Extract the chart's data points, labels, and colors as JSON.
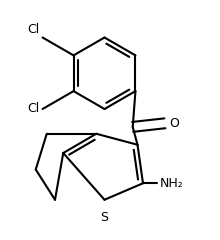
{
  "bg_color": "#ffffff",
  "bond_color": "#000000",
  "text_color": "#000000",
  "line_width": 1.5,
  "font_size": 9,
  "atoms": {
    "Cl1_label": "Cl",
    "Cl2_label": "Cl",
    "O_label": "O",
    "S_label": "S",
    "NH2_label": "NH₂"
  },
  "figsize": [
    2.2,
    2.4
  ],
  "dpi": 100
}
